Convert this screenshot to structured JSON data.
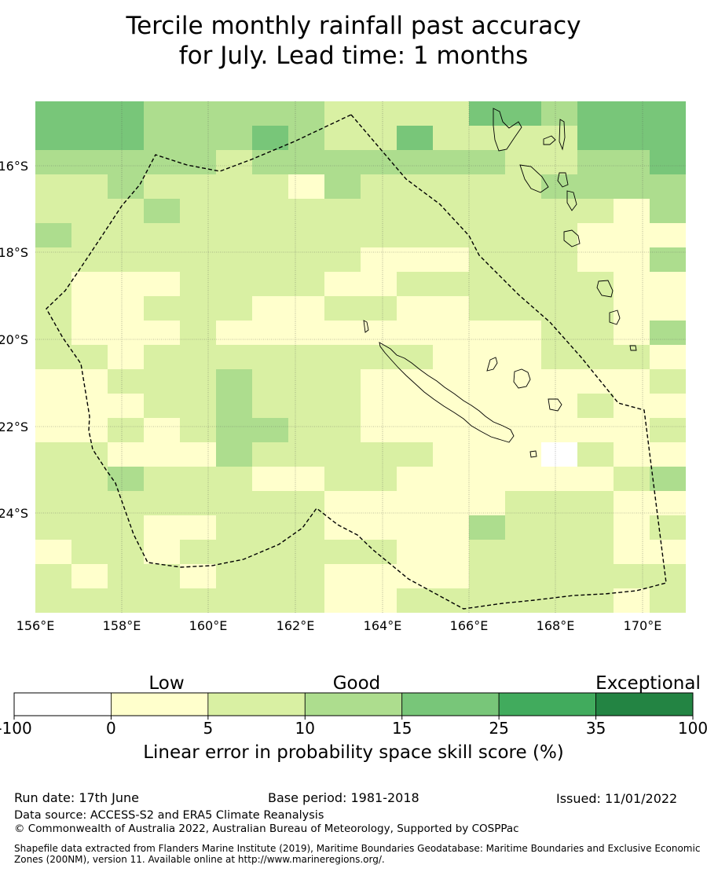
{
  "title": {
    "line1": "Tercile monthly rainfall past accuracy",
    "line2": "for July. Lead time: 1 months"
  },
  "map": {
    "lon_labels": [
      "156°E",
      "158°E",
      "160°E",
      "162°E",
      "164°E",
      "166°E",
      "168°E",
      "170°E"
    ],
    "lat_labels": [
      "16°S",
      "18°S",
      "20°S",
      "22°S",
      "24°S"
    ],
    "region": "New Caledonia exclusive economic zone",
    "boundary_style": "dashed black line",
    "grid": true
  },
  "colorbar": {
    "categories": [
      "Low",
      "Good",
      "Exceptional"
    ],
    "ticks": [
      "-100",
      "0",
      "5",
      "10",
      "15",
      "25",
      "35",
      "100"
    ],
    "colors": [
      "#ffffff",
      "#ffffcc",
      "#d9f0a3",
      "#addd8e",
      "#78c679",
      "#41ab5d",
      "#238443"
    ],
    "label": "Linear error in probability space skill score (%)"
  },
  "footer": {
    "run_date": "Run date: 17th June",
    "base_period": "Base period: 1981-2018",
    "issued": "Issued: 11/01/2022",
    "data_source": "Data source: ACCESS-S2 and ERA5 Climate Reanalysis",
    "copyright": "© Commonwealth of Australia 2022, Australian Bureau of Meteorology, Supported by COSPPac",
    "shapefile": "Shapefile data extracted from Flanders Marine Institute (2019), Maritime Boundaries Geodatabase: Maritime Boundaries and Exclusive Economic Zones (200NM), version 11. Available online at http://www.marineregions.org/."
  }
}
